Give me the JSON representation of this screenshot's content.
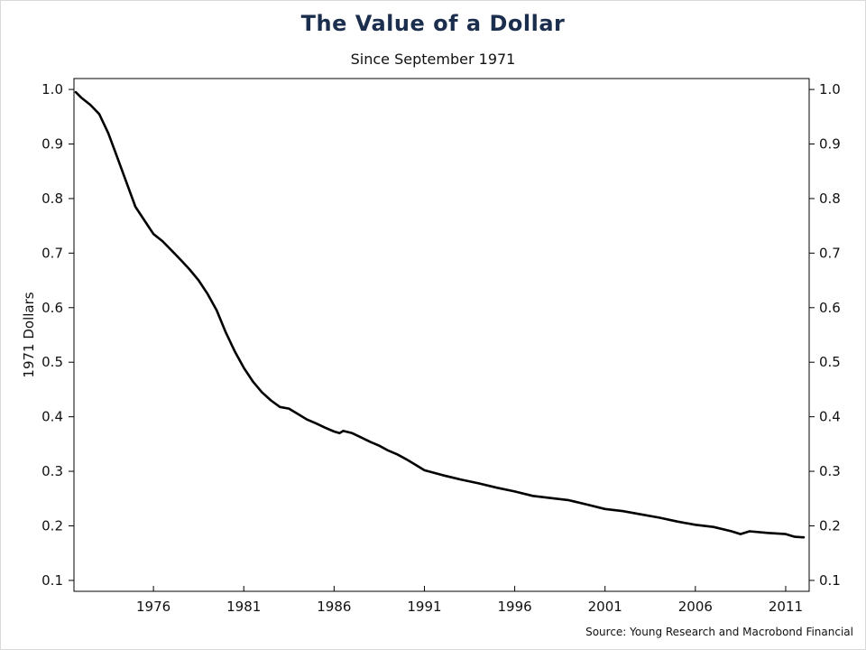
{
  "header": {
    "title": "The Value of a Dollar",
    "subtitle": "Since September 1971"
  },
  "footer": {
    "source": "Source: Young Research and Macrobond Financial"
  },
  "colors": {
    "title": "#1b2e4d",
    "line": "#000000"
  },
  "chart_data": {
    "type": "line",
    "title": "The Value of a Dollar",
    "subtitle": "Since September 1971",
    "xlabel": "",
    "ylabel": "1971 Dollars",
    "xlim": [
      1971.6,
      2012.3
    ],
    "ylim": [
      0.08,
      1.02
    ],
    "x_ticks": [
      1976,
      1981,
      1986,
      1991,
      1996,
      2001,
      2006,
      2011
    ],
    "x_tick_labels": [
      "1976",
      "1981",
      "1986",
      "1991",
      "1996",
      "2001",
      "2006",
      "2011"
    ],
    "y_ticks": [
      0.1,
      0.2,
      0.3,
      0.4,
      0.5,
      0.6,
      0.7,
      0.8,
      0.9,
      1.0
    ],
    "y_tick_labels": [
      "0.1",
      "0.2",
      "0.3",
      "0.4",
      "0.5",
      "0.6",
      "0.7",
      "0.8",
      "0.9",
      "1.0"
    ],
    "secondary_y_axis": true,
    "grid": false,
    "legend": "none",
    "series": [
      {
        "x": [
          1971.7,
          1972.0,
          1972.5,
          1973.0,
          1973.5,
          1974.0,
          1974.5,
          1975.0,
          1975.5,
          1976.0,
          1976.5,
          1977.0,
          1977.5,
          1978.0,
          1978.5,
          1979.0,
          1979.5,
          1980.0,
          1980.5,
          1981.0,
          1981.5,
          1982.0,
          1982.5,
          1983.0,
          1983.5,
          1984.0,
          1984.5,
          1985.0,
          1985.5,
          1986.0,
          1986.3,
          1986.5,
          1987.0,
          1987.5,
          1988.0,
          1988.5,
          1989.0,
          1989.5,
          1990.0,
          1990.5,
          1991.0,
          1992.0,
          1993.0,
          1994.0,
          1995.0,
          1996.0,
          1997.0,
          1998.0,
          1999.0,
          2000.0,
          2001.0,
          2002.0,
          2003.0,
          2004.0,
          2005.0,
          2006.0,
          2007.0,
          2008.0,
          2008.5,
          2008.8,
          2009.0,
          2010.0,
          2011.0,
          2011.5,
          2012.0
        ],
        "values": [
          0.995,
          0.985,
          0.972,
          0.955,
          0.92,
          0.875,
          0.83,
          0.785,
          0.76,
          0.735,
          0.722,
          0.705,
          0.688,
          0.67,
          0.65,
          0.625,
          0.595,
          0.555,
          0.52,
          0.49,
          0.465,
          0.445,
          0.43,
          0.418,
          0.415,
          0.405,
          0.395,
          0.388,
          0.38,
          0.373,
          0.37,
          0.374,
          0.37,
          0.362,
          0.354,
          0.347,
          0.338,
          0.331,
          0.322,
          0.312,
          0.302,
          0.293,
          0.285,
          0.278,
          0.27,
          0.263,
          0.255,
          0.251,
          0.247,
          0.239,
          0.231,
          0.227,
          0.221,
          0.215,
          0.208,
          0.202,
          0.198,
          0.19,
          0.185,
          0.188,
          0.19,
          0.187,
          0.185,
          0.18,
          0.179
        ]
      }
    ]
  }
}
